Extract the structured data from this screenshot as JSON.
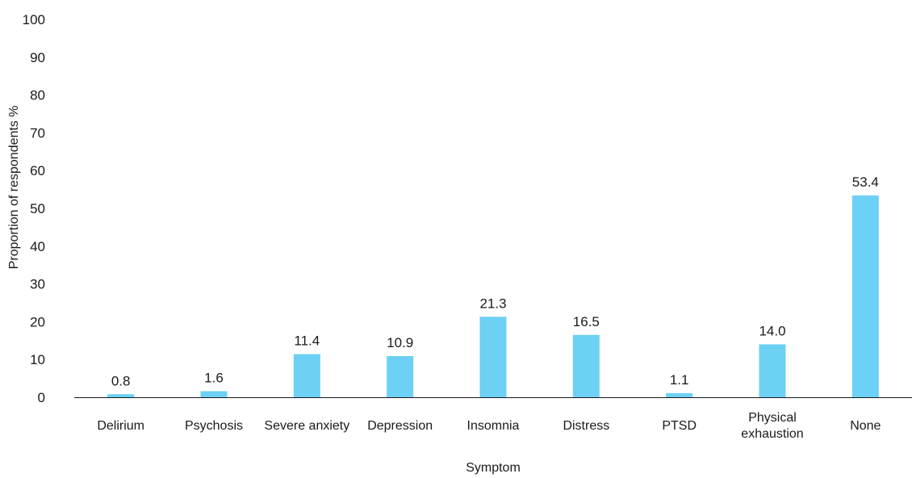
{
  "chart_data": {
    "type": "bar",
    "xlabel": "Symptom",
    "ylabel": "Proportion of respondents %",
    "ylim": [
      0,
      100
    ],
    "yticks": [
      0,
      10,
      20,
      30,
      40,
      50,
      60,
      70,
      80,
      90,
      100
    ],
    "grid": false,
    "legend": "none",
    "bar_color": "#6dd0f5",
    "categories": [
      [
        "Delirium"
      ],
      [
        "Psychosis"
      ],
      [
        "Severe anxiety"
      ],
      [
        "Depression"
      ],
      [
        "Insomnia"
      ],
      [
        "Distress"
      ],
      [
        "PTSD"
      ],
      [
        "Physical",
        "exhaustion"
      ],
      [
        "None"
      ]
    ],
    "values": [
      0.8,
      1.6,
      11.4,
      10.9,
      21.3,
      16.5,
      1.1,
      14.0,
      53.4
    ],
    "value_labels": [
      "0.8",
      "1.6",
      "11.4",
      "10.9",
      "21.3",
      "16.5",
      "1.1",
      "14.0",
      "53.4"
    ]
  }
}
